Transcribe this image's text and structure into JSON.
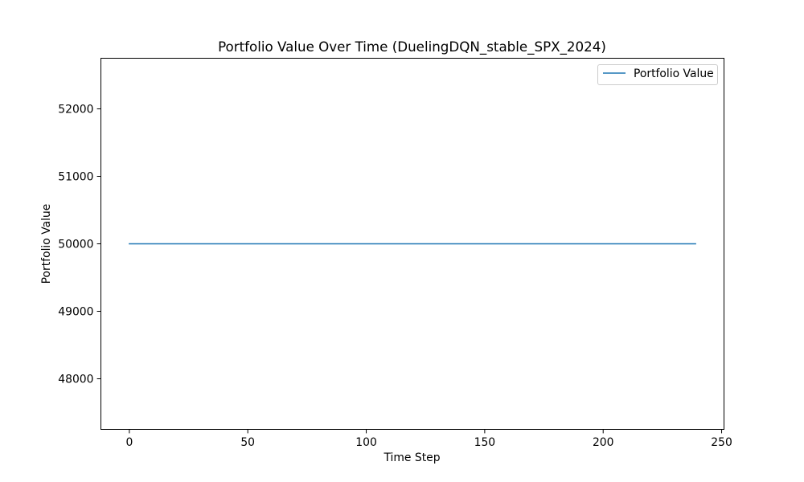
{
  "chart_data": {
    "type": "line",
    "title": "Portfolio Value Over Time (DuelingDQN_stable_SPX_2024)",
    "xlabel": "Time Step",
    "ylabel": "Portfolio Value",
    "xlim": [
      -12,
      251
    ],
    "ylim": [
      47250,
      52750
    ],
    "xticks": [
      0,
      50,
      100,
      150,
      200,
      250
    ],
    "yticks": [
      48000,
      49000,
      50000,
      51000,
      52000
    ],
    "grid": false,
    "legend_position": "upper right",
    "series": [
      {
        "name": "Portfolio Value",
        "color": "#1f77b4",
        "x": [
          0,
          239
        ],
        "y": [
          50000,
          50000
        ]
      }
    ]
  }
}
